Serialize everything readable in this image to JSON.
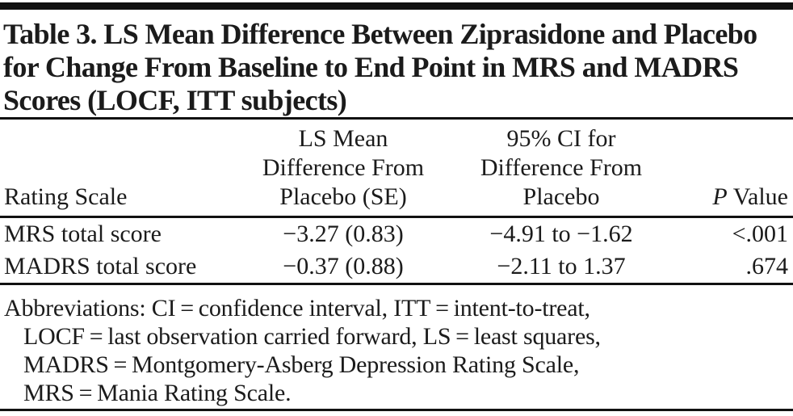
{
  "colors": {
    "text": "#1b1b1b",
    "rule": "#111111",
    "background": "#ffffff"
  },
  "title": {
    "lines": [
      "Table 3. LS Mean Difference Between Ziprasidone and Placebo",
      "for Change From Baseline to End Point in MRS and MADRS",
      "Scores (LOCF, ITT subjects)"
    ]
  },
  "table": {
    "columns": [
      {
        "label": "Rating Scale"
      },
      {
        "lines": [
          "LS Mean",
          "Difference From",
          "Placebo (SE)"
        ]
      },
      {
        "lines": [
          "95% CI for",
          "Difference From",
          "Placebo"
        ]
      },
      {
        "label_italic": "P",
        "label_rest": " Value"
      }
    ],
    "rows": [
      {
        "rating_scale": "MRS total score",
        "ls_mean_diff": "−3.27 (0.83)",
        "ci": "−4.91 to −1.62",
        "p_value": "<.001"
      },
      {
        "rating_scale": "MADRS total score",
        "ls_mean_diff": "−0.37 (0.88)",
        "ci": "−2.11 to 1.37",
        "p_value": ".674"
      }
    ]
  },
  "footnote": {
    "lines": [
      "Abbreviations: CI = confidence interval, ITT = intent-to-treat,",
      "LOCF = last observation carried forward, LS = least squares,",
      "MADRS = Montgomery-Asberg Depression Rating Scale,",
      "MRS = Mania Rating Scale."
    ]
  }
}
